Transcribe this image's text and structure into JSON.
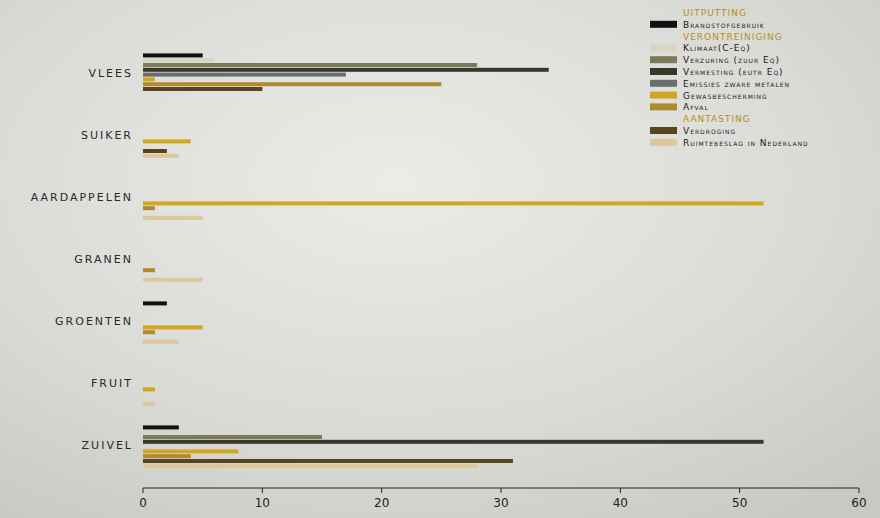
{
  "chart_data": {
    "type": "bar",
    "orientation": "horizontal",
    "categories": [
      "VLEES",
      "SUIKER",
      "AARDAPPELEN",
      "GRANEN",
      "GROENTEN",
      "FRUIT",
      "ZUIVEL"
    ],
    "annotations": [
      "UITPUTTING",
      "VERONTREINIGING",
      "AANTASTING"
    ],
    "series": [
      {
        "name": "Brandstofgebruik",
        "color": "#111111",
        "values": [
          5,
          0,
          0,
          0,
          2,
          0,
          3
        ]
      },
      {
        "name": "Klimaat(C-Eq)",
        "color": "#d9d5c3",
        "values": [
          6,
          0,
          0,
          0,
          0,
          0,
          0
        ]
      },
      {
        "name": "Verzuring (zuur Eq)",
        "color": "#7d7a58",
        "values": [
          28,
          0,
          0,
          0,
          0,
          0,
          15
        ]
      },
      {
        "name": "Vermesting (eutr Eq)",
        "color": "#38382a",
        "values": [
          34,
          0,
          0,
          0,
          0,
          0,
          52
        ]
      },
      {
        "name": "Emissies zware metalen",
        "color": "#6a6e6e",
        "values": [
          17,
          0,
          0,
          0,
          0,
          0,
          0
        ]
      },
      {
        "name": "Gewasbescherming",
        "color": "#d2a61e",
        "values": [
          1,
          4,
          52,
          0,
          5,
          1,
          8
        ]
      },
      {
        "name": "Afval",
        "color": "#b08a30",
        "values": [
          25,
          0,
          1,
          1,
          1,
          0,
          4
        ]
      },
      {
        "name": "Verdroging",
        "color": "#5a4420",
        "values": [
          10,
          2,
          0,
          0,
          0,
          0,
          31
        ]
      },
      {
        "name": "Ruimtebeslag in Nederland",
        "color": "#dcc89a",
        "values": [
          0,
          3,
          5,
          5,
          3,
          1,
          28
        ]
      }
    ],
    "xlim": [
      0,
      60
    ],
    "xticks": [
      0,
      10,
      20,
      30,
      40,
      50,
      60
    ],
    "legend": "upper right",
    "grid": false
  }
}
